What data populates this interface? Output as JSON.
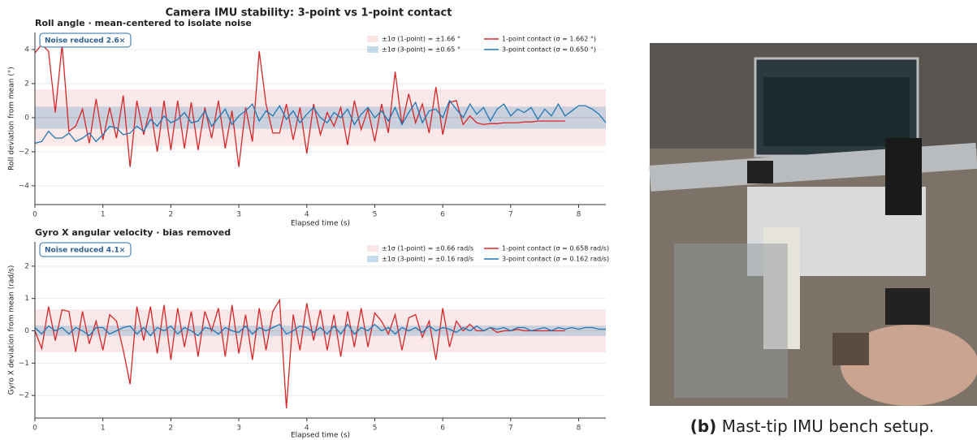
{
  "figure_title": "Camera IMU stability: 3-point vs 1-point contact",
  "caption": {
    "label": "(b)",
    "text": "Mast-tip IMU bench setup."
  },
  "chart_data": [
    {
      "type": "line",
      "title": "Roll angle  ·  mean-centered to isolate noise",
      "xlabel": "Elapsed time (s)",
      "ylabel": "Roll deviation from mean (°)",
      "annotation": "Noise reduced  2.6×",
      "legend": "upper right",
      "grid": true,
      "xlim": [
        0,
        8.4
      ],
      "xticks": [
        0,
        1,
        2,
        3,
        4,
        5,
        6,
        7,
        8
      ],
      "ylim": [
        -5.1,
        5.0
      ],
      "yticks": [
        {
          "value": -4,
          "label": "−4"
        },
        {
          "value": -2,
          "label": "−2"
        },
        0,
        2,
        4
      ],
      "bands": [
        {
          "name": "±1σ (1-point) = ±1.66 °",
          "color": "#d62728",
          "value": 1.66
        },
        {
          "name": "±1σ (3-point) = ±0.65 °",
          "color": "#1f77b4",
          "value": 0.65
        }
      ],
      "x": [
        0,
        0.1,
        0.2,
        0.3,
        0.4,
        0.5,
        0.6,
        0.7,
        0.8,
        0.9,
        1,
        1.1,
        1.2,
        1.3,
        1.4,
        1.5,
        1.6,
        1.7,
        1.8,
        1.9,
        2,
        2.1,
        2.2,
        2.3,
        2.4,
        2.5,
        2.6,
        2.7,
        2.8,
        2.9,
        3,
        3.1,
        3.2,
        3.3,
        3.4,
        3.5,
        3.6,
        3.7,
        3.8,
        3.9,
        4,
        4.1,
        4.2,
        4.3,
        4.4,
        4.5,
        4.6,
        4.7,
        4.8,
        4.9,
        5,
        5.1,
        5.2,
        5.3,
        5.4,
        5.5,
        5.6,
        5.7,
        5.8,
        5.9,
        6,
        6.1,
        6.2,
        6.3,
        6.4,
        6.5,
        6.6,
        6.7,
        6.8,
        6.9,
        7,
        7.1,
        7.2,
        7.3,
        7.4,
        7.5,
        7.6,
        7.7,
        7.8,
        7.9,
        8,
        8.1,
        8.2,
        8.3,
        8.4
      ],
      "series": [
        {
          "name": "1-point contact  (σ = 1.662 °)",
          "color": "#d62728",
          "values": [
            3.8,
            4.3,
            3.9,
            0.3,
            4.3,
            -0.8,
            -0.5,
            0.5,
            -1.5,
            1.1,
            -1.3,
            0.6,
            -1.2,
            1.3,
            -2.9,
            1.0,
            -1.0,
            0.6,
            -2.0,
            1.0,
            -1.9,
            1.0,
            -1.8,
            0.9,
            -1.9,
            0.6,
            -1.2,
            1.0,
            -1.8,
            0.4,
            -2.9,
            0.6,
            -1.4,
            3.9,
            0.8,
            -0.9,
            -0.9,
            0.8,
            -1.3,
            0.6,
            -2.1,
            0.8,
            -1.0,
            0.3,
            -0.5,
            0.6,
            -1.6,
            1.0,
            -0.7,
            0.5,
            -1.4,
            0.8,
            -0.9,
            2.7,
            -0.4,
            1.4,
            -0.3,
            0.8,
            -0.9,
            1.8,
            -1.0,
            0.9,
            1.0,
            -0.4,
            0.1,
            -0.3,
            -0.4,
            -0.35,
            -0.35,
            -0.3,
            -0.3,
            -0.3,
            -0.25,
            -0.25,
            -0.2,
            -0.2,
            -0.2,
            -0.2,
            -0.2,
            null,
            null,
            null,
            null,
            null,
            null
          ]
        },
        {
          "name": "3-point contact  (σ = 0.650 °)",
          "color": "#1f77b4",
          "values": [
            -1.5,
            -1.4,
            -0.8,
            -1.2,
            -1.2,
            -0.9,
            -1.4,
            -1.2,
            -0.9,
            -1.4,
            -1.0,
            -0.5,
            -0.6,
            -1.0,
            -0.9,
            -0.5,
            -0.8,
            -0.1,
            -0.5,
            0.1,
            -0.3,
            -0.1,
            0.3,
            -0.3,
            -0.2,
            0.4,
            -0.5,
            0.0,
            0.5,
            -0.4,
            0.1,
            0.4,
            0.8,
            -0.2,
            0.4,
            0.1,
            0.7,
            -0.1,
            0.4,
            -0.3,
            0.2,
            0.6,
            0.0,
            -0.3,
            0.3,
            0.0,
            0.5,
            -0.4,
            0.2,
            0.6,
            0.0,
            0.4,
            -0.2,
            0.6,
            -0.4,
            0.3,
            0.9,
            -0.3,
            0.4,
            0.5,
            0.0,
            1.0,
            0.5,
            0.0,
            0.8,
            0.2,
            0.6,
            -0.2,
            0.5,
            0.8,
            0.1,
            0.5,
            0.3,
            0.6,
            -0.1,
            0.5,
            0.1,
            0.8,
            0.1,
            0.4,
            0.7,
            0.7,
            0.5,
            0.2,
            -0.3
          ]
        }
      ]
    },
    {
      "type": "line",
      "title": "Gyro X angular velocity  ·  bias removed",
      "xlabel": "Elapsed time (s)",
      "ylabel": "Gyro X deviation from mean (rad/s)",
      "annotation": "Noise reduced  4.1×",
      "legend": "upper right",
      "grid": true,
      "xlim": [
        0,
        8.4
      ],
      "xticks": [
        0,
        1,
        2,
        3,
        4,
        5,
        6,
        7,
        8
      ],
      "ylim": [
        -2.7,
        2.75
      ],
      "yticks": [
        {
          "value": -2,
          "label": "−2"
        },
        {
          "value": -1,
          "label": "−1"
        },
        0,
        1,
        2
      ],
      "bands": [
        {
          "name": "±1σ (1-point) = ±0.66 rad/s",
          "color": "#d62728",
          "value": 0.66
        },
        {
          "name": "±1σ (3-point) = ±0.16 rad/s",
          "color": "#1f77b4",
          "value": 0.16
        }
      ],
      "x": [
        0,
        0.1,
        0.2,
        0.3,
        0.4,
        0.5,
        0.6,
        0.7,
        0.8,
        0.9,
        1,
        1.1,
        1.2,
        1.3,
        1.4,
        1.5,
        1.6,
        1.7,
        1.8,
        1.9,
        2,
        2.1,
        2.2,
        2.3,
        2.4,
        2.5,
        2.6,
        2.7,
        2.8,
        2.9,
        3,
        3.1,
        3.2,
        3.3,
        3.4,
        3.5,
        3.6,
        3.7,
        3.8,
        3.9,
        4,
        4.1,
        4.2,
        4.3,
        4.4,
        4.5,
        4.6,
        4.7,
        4.8,
        4.9,
        5,
        5.1,
        5.2,
        5.3,
        5.4,
        5.5,
        5.6,
        5.7,
        5.8,
        5.9,
        6,
        6.1,
        6.2,
        6.3,
        6.4,
        6.5,
        6.6,
        6.7,
        6.8,
        6.9,
        7,
        7.1,
        7.2,
        7.3,
        7.4,
        7.5,
        7.6,
        7.7,
        7.8,
        7.9,
        8,
        8.1,
        8.2,
        8.3,
        8.4
      ],
      "series": [
        {
          "name": "1-point contact  (σ = 0.658 rad/s)",
          "color": "#d62728",
          "values": [
            0.0,
            -0.55,
            0.75,
            -0.3,
            0.65,
            0.6,
            -0.65,
            0.6,
            -0.4,
            0.3,
            -0.6,
            0.5,
            0.3,
            -0.6,
            -1.65,
            0.75,
            -0.3,
            0.75,
            -0.7,
            0.8,
            -0.9,
            0.7,
            -0.5,
            0.6,
            -0.8,
            0.6,
            0.0,
            0.7,
            -0.8,
            0.8,
            -0.7,
            0.5,
            -0.9,
            0.7,
            -0.6,
            0.6,
            0.95,
            -2.4,
            0.5,
            -0.6,
            0.85,
            -0.3,
            0.65,
            -0.6,
            0.5,
            -0.8,
            0.6,
            -0.5,
            0.7,
            -0.5,
            0.55,
            0.3,
            -0.1,
            0.5,
            -0.6,
            0.4,
            0.5,
            -0.2,
            0.3,
            -0.9,
            0.7,
            -0.5,
            0.3,
            0.0,
            0.2,
            0.0,
            0.0,
            0.1,
            -0.05,
            0.0,
            0.0,
            0.05,
            0.0,
            0.0,
            0.0,
            0.0,
            0.0,
            0.0,
            0.0,
            null,
            null,
            null,
            null,
            null,
            null
          ]
        },
        {
          "name": "3-point contact  (σ = 0.162 rad/s)",
          "color": "#1f77b4",
          "values": [
            0.1,
            -0.1,
            0.15,
            0.0,
            0.1,
            -0.1,
            0.1,
            0.0,
            -0.15,
            0.1,
            0.1,
            -0.1,
            0.0,
            0.1,
            0.15,
            -0.1,
            0.1,
            -0.15,
            0.1,
            0.0,
            0.15,
            -0.1,
            0.1,
            0.0,
            -0.15,
            0.1,
            0.05,
            -0.1,
            0.1,
            0.0,
            -0.05,
            0.15,
            -0.1,
            0.1,
            0.0,
            0.1,
            0.2,
            -0.1,
            0.0,
            0.15,
            0.1,
            -0.05,
            0.1,
            -0.1,
            0.15,
            -0.1,
            0.2,
            -0.1,
            0.1,
            0.0,
            0.2,
            0.0,
            0.1,
            -0.1,
            0.1,
            0.0,
            0.1,
            -0.05,
            0.15,
            0.0,
            0.1,
            0.05,
            -0.05,
            0.1,
            0.0,
            0.15,
            0.0,
            0.1,
            0.05,
            0.1,
            0.0,
            0.1,
            0.1,
            0.0,
            0.05,
            0.1,
            0.0,
            0.1,
            0.05,
            0.1,
            0.05,
            0.1,
            0.1,
            0.05,
            0.05
          ]
        }
      ]
    }
  ]
}
